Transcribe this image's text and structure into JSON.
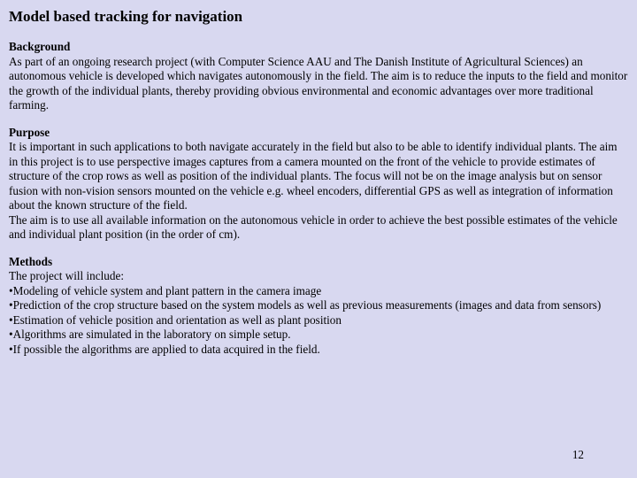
{
  "colors": {
    "background": "#d8d8f0",
    "text": "#000000"
  },
  "typography": {
    "family": "Times New Roman",
    "title_size_pt": 13,
    "body_size_pt": 10,
    "title_weight": "bold",
    "heading_weight": "bold"
  },
  "title": "Model based tracking for navigation",
  "sections": {
    "background": {
      "heading": "Background",
      "body": "As part of an ongoing research project (with Computer Science AAU and The Danish Institute of Agricultural Sciences) an autonomous vehicle is developed which navigates autonomously in the field. The aim is to reduce the inputs to the field and monitor the growth of the individual plants, thereby providing obvious environmental and economic advantages over more traditional farming."
    },
    "purpose": {
      "heading": "Purpose",
      "body1": "It is important in such applications to both navigate accurately in the field but also to be able to identify individual plants. The aim in this project is to use perspective images captures from a camera mounted on the front of the vehicle to provide estimates of structure of the crop rows as well as position of the individual plants. The focus will not be on the image analysis but on sensor fusion with non-vision sensors mounted on the vehicle e.g. wheel encoders, differential GPS as well as integration of information about the known structure of the field.",
      "body2": "The aim is to use all available information on the autonomous vehicle in order to achieve the best possible estimates of the vehicle and individual plant position (in the order of cm)."
    },
    "methods": {
      "heading": "Methods",
      "intro": "The project will include:",
      "bullets": [
        "•Modeling of vehicle system and plant pattern in the camera image",
        "•Prediction of the crop structure based on the system models as well as previous measurements (images and data from sensors)",
        "•Estimation of vehicle position and orientation as well as plant position",
        "•Algorithms are simulated in the laboratory on simple setup.",
        "•If possible the algorithms are applied to data acquired in the field."
      ]
    }
  },
  "page_number": "12"
}
